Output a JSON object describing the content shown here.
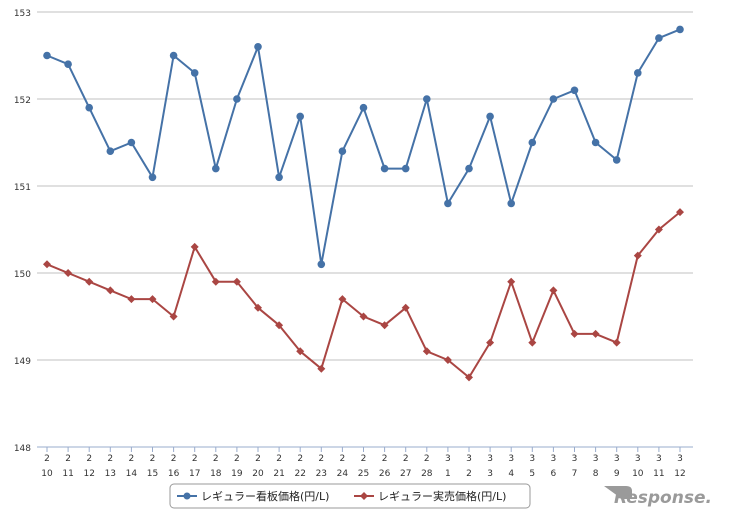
{
  "chart_data": {
    "type": "line",
    "title": "",
    "xlabel": "",
    "ylabel": "",
    "ylim": [
      148,
      153
    ],
    "yticks": [
      "148",
      "149",
      "150",
      "151",
      "152",
      "153"
    ],
    "grid": true,
    "legend_position": "bottom-center",
    "categories": [
      [
        "2",
        "10"
      ],
      [
        "2",
        "11"
      ],
      [
        "2",
        "12"
      ],
      [
        "2",
        "13"
      ],
      [
        "2",
        "14"
      ],
      [
        "2",
        "15"
      ],
      [
        "2",
        "16"
      ],
      [
        "2",
        "17"
      ],
      [
        "2",
        "18"
      ],
      [
        "2",
        "19"
      ],
      [
        "2",
        "20"
      ],
      [
        "2",
        "21"
      ],
      [
        "2",
        "22"
      ],
      [
        "2",
        "23"
      ],
      [
        "2",
        "24"
      ],
      [
        "2",
        "25"
      ],
      [
        "2",
        "26"
      ],
      [
        "2",
        "27"
      ],
      [
        "2",
        "28"
      ],
      [
        "3",
        "1"
      ],
      [
        "3",
        "2"
      ],
      [
        "3",
        "3"
      ],
      [
        "3",
        "4"
      ],
      [
        "3",
        "5"
      ],
      [
        "3",
        "6"
      ],
      [
        "3",
        "7"
      ],
      [
        "3",
        "8"
      ],
      [
        "3",
        "9"
      ],
      [
        "3",
        "10"
      ],
      [
        "3",
        "11"
      ],
      [
        "3",
        "12"
      ]
    ],
    "series": [
      {
        "name": "レギュラー看板価格(円/L)",
        "color": "#4572a7",
        "marker": "circle",
        "values": [
          152.5,
          152.4,
          151.9,
          151.4,
          151.5,
          151.1,
          152.5,
          152.3,
          151.2,
          152.0,
          152.6,
          151.1,
          151.8,
          150.1,
          151.4,
          151.9,
          151.2,
          151.2,
          152.0,
          150.8,
          151.2,
          151.8,
          150.8,
          151.5,
          152.0,
          152.1,
          151.5,
          151.3,
          152.3,
          152.7,
          152.8
        ]
      },
      {
        "name": "レギュラー実売価格(円/L)",
        "color": "#aa4643",
        "marker": "diamond",
        "values": [
          150.1,
          150.0,
          149.9,
          149.8,
          149.7,
          149.7,
          149.5,
          150.3,
          149.9,
          149.9,
          149.6,
          149.4,
          149.1,
          148.9,
          149.7,
          149.5,
          149.4,
          149.6,
          149.1,
          149.0,
          148.8,
          149.2,
          149.9,
          149.2,
          149.8,
          149.3,
          149.3,
          149.2,
          150.2,
          150.5,
          150.7
        ]
      }
    ]
  },
  "watermark": {
    "text": "Response.",
    "color": "#9a9a9a"
  }
}
